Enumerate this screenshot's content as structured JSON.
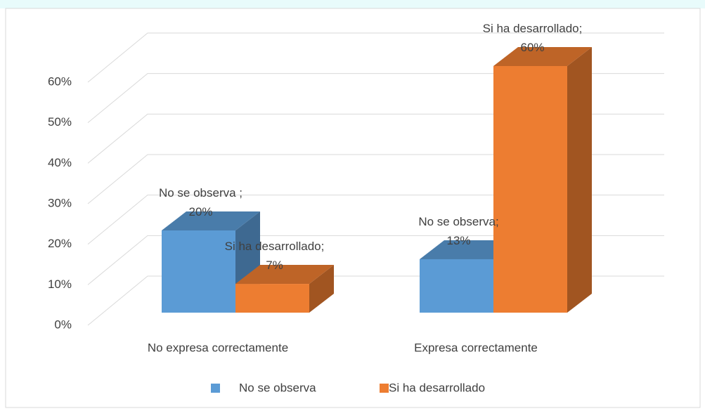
{
  "chart_data": {
    "type": "bar3d",
    "categories": [
      "No expresa correctamente",
      "Expresa correctamente"
    ],
    "series": [
      {
        "name": "No se observa",
        "color": "#5b9bd5",
        "values": [
          20,
          13
        ],
        "value_labels": [
          "No se observa ;\n20%",
          "No se observa;\n13%"
        ]
      },
      {
        "name": "Si ha desarrollado",
        "color": "#ed7d31",
        "values": [
          7,
          60
        ],
        "value_labels": [
          "Si ha desarrollado;\n7%",
          "Si ha desarrollado;\n60%"
        ]
      }
    ],
    "ylim": [
      0,
      60
    ],
    "yticks": [
      {
        "value": 0,
        "label": "0%"
      },
      {
        "value": 10,
        "label": "10%"
      },
      {
        "value": 20,
        "label": "20%"
      },
      {
        "value": 30,
        "label": "30%"
      },
      {
        "value": 40,
        "label": "40%"
      },
      {
        "value": 50,
        "label": "50%"
      },
      {
        "value": 60,
        "label": "60%"
      }
    ],
    "grid": true,
    "legend": "bottom"
  }
}
